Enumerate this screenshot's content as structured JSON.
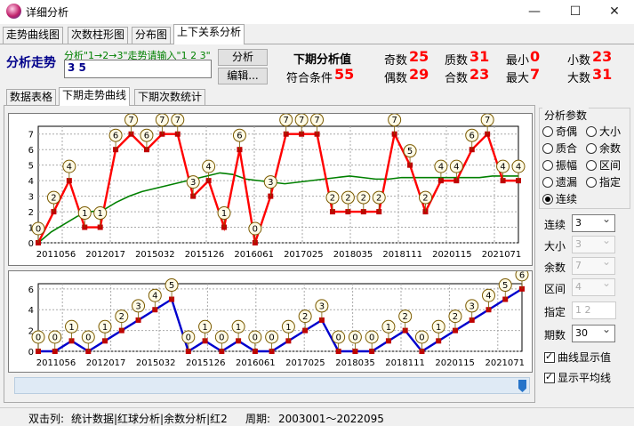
{
  "window": {
    "title": "详细分析",
    "minimize": "—",
    "maximize": "☐",
    "close": "✕"
  },
  "top_tabs": [
    "走势曲线图",
    "次数柱形图",
    "分布图",
    "上下关系分析"
  ],
  "header": {
    "trend_label": "分析走势",
    "hint": "分析\"1→2→3\"走势请输入\"1 2 3\"",
    "input_value": "3 5",
    "analyze_button": "分析",
    "edit_button": "编辑...",
    "next_value_title": "下期分析值",
    "match_label": "符合条件",
    "match_value": "55",
    "stats": [
      {
        "label": "奇数",
        "value": "25"
      },
      {
        "label": "质数",
        "value": "31"
      },
      {
        "label": "最小",
        "value": "0"
      },
      {
        "label": "小数",
        "value": "23"
      },
      {
        "label": "偶数",
        "value": "29"
      },
      {
        "label": "合数",
        "value": "23"
      },
      {
        "label": "最大",
        "value": "7"
      },
      {
        "label": "大数",
        "value": "31"
      }
    ]
  },
  "inner_tabs": [
    "数据表格",
    "下期走势曲线",
    "下期次数统计"
  ],
  "params": {
    "title": "分析参数",
    "radios": [
      {
        "label": "奇偶",
        "checked": false
      },
      {
        "label": "大小",
        "checked": false
      },
      {
        "label": "质合",
        "checked": false
      },
      {
        "label": "余数",
        "checked": false
      },
      {
        "label": "振幅",
        "checked": false
      },
      {
        "label": "区间",
        "checked": false
      },
      {
        "label": "遗漏",
        "checked": false
      },
      {
        "label": "指定",
        "checked": false
      },
      {
        "label": "连续",
        "checked": true
      }
    ],
    "fields": [
      {
        "label": "连续",
        "value": "3",
        "enabled": true,
        "kind": "select"
      },
      {
        "label": "大小",
        "value": "3",
        "enabled": false,
        "kind": "select"
      },
      {
        "label": "余数",
        "value": "7",
        "enabled": false,
        "kind": "select"
      },
      {
        "label": "区间",
        "value": "4",
        "enabled": false,
        "kind": "select"
      },
      {
        "label": "指定",
        "value": "1 2",
        "enabled": false,
        "kind": "text"
      },
      {
        "label": "期数",
        "value": "30",
        "enabled": true,
        "kind": "select"
      }
    ],
    "checkboxes": [
      {
        "label": "曲线显示值",
        "checked": true
      },
      {
        "label": "显示平均线",
        "checked": true
      }
    ]
  },
  "statusbar": {
    "dblclick_label": "双击列:",
    "dblclick_value": "统计数据|红球分析|余数分析|红2",
    "period_label": "周期:",
    "period_value": "2003001～2022095"
  },
  "colors": {
    "red_series": "#ff0000",
    "avg_line": "#008000",
    "blue_series": "#0000cd",
    "marker": "#c00000"
  },
  "chart_data": [
    {
      "type": "line",
      "x_tick_labels": [
        "2011056",
        "2012017",
        "2015032",
        "2015126",
        "2016061",
        "2017025",
        "2018035",
        "2018111",
        "2020115",
        "2021071"
      ],
      "y_ticks": [
        "0",
        "1",
        "2",
        "3",
        "4",
        "5",
        "6",
        "7"
      ],
      "ylim": [
        0,
        7.5
      ],
      "grid": true,
      "series": [
        {
          "values": [
            0,
            2,
            4,
            1,
            1,
            6,
            7,
            6,
            7,
            7,
            3,
            4,
            1,
            6,
            0,
            3,
            7,
            7,
            7,
            2,
            2,
            2,
            2,
            7,
            5,
            2,
            4,
            4,
            6,
            7,
            4,
            4
          ]
        },
        {
          "values": [
            0,
            0.7,
            1.2,
            1.7,
            2.0,
            2.1,
            2.6,
            3.0,
            3.3,
            3.5,
            3.7,
            3.9,
            4.1,
            4.3,
            4.5,
            4.4,
            4.1,
            4.0,
            3.9,
            3.8,
            3.9,
            4.0,
            4.1,
            4.2,
            4.3,
            4.2,
            4.1,
            4.1,
            4.2,
            4.2,
            4.2,
            4.2,
            4.2,
            4.2,
            4.2,
            4.3,
            4.3,
            4.3
          ]
        }
      ]
    },
    {
      "type": "line",
      "x_tick_labels": [
        "2011056",
        "2012017",
        "2015032",
        "2015126",
        "2016061",
        "2017025",
        "2018035",
        "2018111",
        "2020115",
        "2021071"
      ],
      "y_ticks": [
        "0",
        "2",
        "4",
        "6"
      ],
      "ylim": [
        0,
        6.5
      ],
      "grid": true,
      "series": [
        {
          "values": [
            0,
            0,
            1,
            0,
            1,
            2,
            3,
            4,
            5,
            0,
            1,
            0,
            1,
            0,
            0,
            1,
            2,
            3,
            0,
            0,
            0,
            1,
            2,
            0,
            1,
            2,
            3,
            4,
            5,
            6
          ]
        }
      ]
    }
  ]
}
